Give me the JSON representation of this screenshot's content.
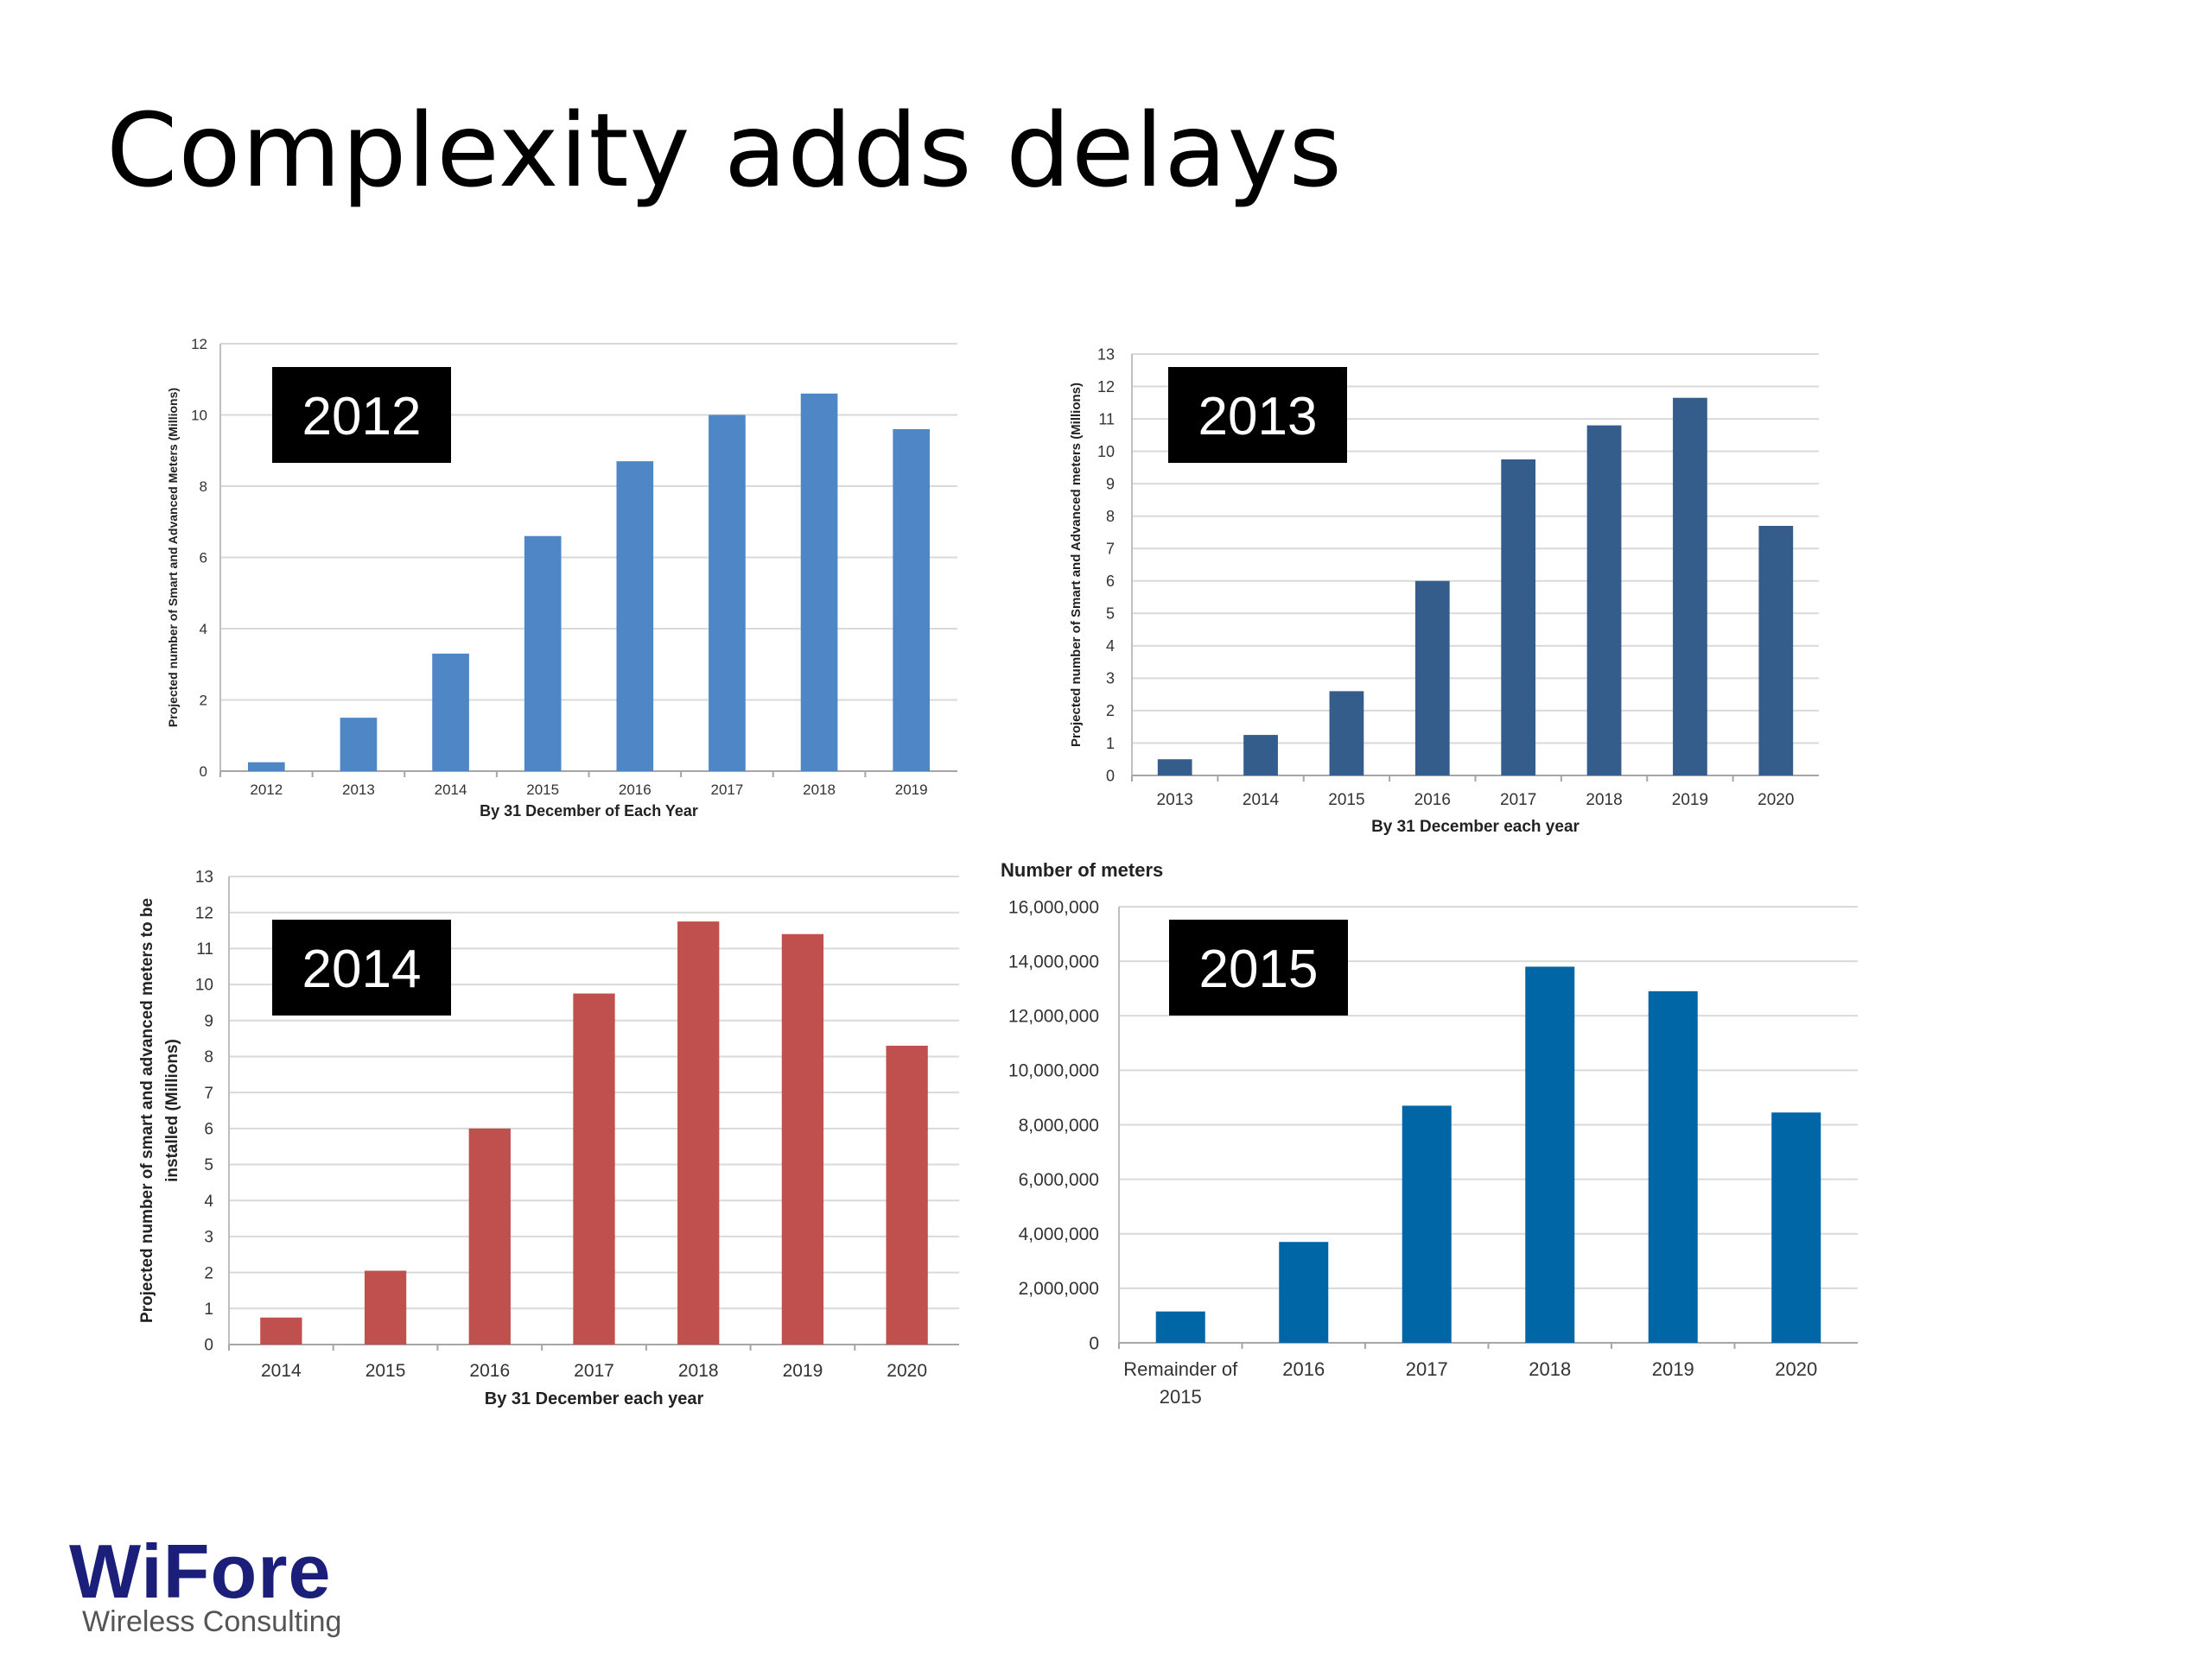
{
  "slide": {
    "title": "Complexity adds delays"
  },
  "logo": {
    "name": "WiFore",
    "tagline": "Wireless Consulting"
  },
  "chart_data": [
    {
      "type": "bar",
      "badge": "2012",
      "categories": [
        "2012",
        "2013",
        "2014",
        "2015",
        "2016",
        "2017",
        "2018",
        "2019"
      ],
      "values": [
        0.25,
        1.5,
        3.3,
        6.6,
        8.7,
        10.0,
        10.6,
        9.6
      ],
      "ylim": [
        0,
        12
      ],
      "yticks": [
        0,
        2,
        4,
        6,
        8,
        10,
        12
      ],
      "ylabel": "Projected number of Smart and Advanced Meters (Millions)",
      "xlabel": "By 31 December of Each Year",
      "color": "#4f86c6",
      "grid": true
    },
    {
      "type": "bar",
      "badge": "2013",
      "categories": [
        "2013",
        "2014",
        "2015",
        "2016",
        "2017",
        "2018",
        "2019",
        "2020"
      ],
      "values": [
        0.5,
        1.25,
        2.6,
        6.0,
        9.75,
        10.8,
        11.65,
        7.7
      ],
      "ylim": [
        0,
        13
      ],
      "yticks": [
        0,
        1,
        2,
        3,
        4,
        5,
        6,
        7,
        8,
        9,
        10,
        11,
        12,
        13
      ],
      "ylabel": "Projected number of Smart and Advanced meters (Millions)",
      "xlabel": "By 31 December each year",
      "color": "#355d8c",
      "grid": true
    },
    {
      "type": "bar",
      "badge": "2014",
      "categories": [
        "2014",
        "2015",
        "2016",
        "2017",
        "2018",
        "2019",
        "2020"
      ],
      "values": [
        0.75,
        2.05,
        6.0,
        9.75,
        11.75,
        11.4,
        8.3
      ],
      "ylim": [
        0,
        13
      ],
      "yticks": [
        0,
        1,
        2,
        3,
        4,
        5,
        6,
        7,
        8,
        9,
        10,
        11,
        12,
        13
      ],
      "ylabel": "Projected number of smart and advanced meters to be",
      "ylabel2": "installed (Millions)",
      "xlabel": "By 31 December each year",
      "color": "#c0504d",
      "grid": true
    },
    {
      "type": "bar",
      "badge": "2015",
      "categories": [
        "Remainder of 2015",
        "2016",
        "2017",
        "2018",
        "2019",
        "2020"
      ],
      "values": [
        1150000,
        3700000,
        8700000,
        13800000,
        12900000,
        8450000
      ],
      "ylim": [
        0,
        16000000
      ],
      "yticks": [
        "0",
        "2,000,000",
        "4,000,000",
        "6,000,000",
        "8,000,000",
        "10,000,000",
        "12,000,000",
        "14,000,000",
        "16,000,000"
      ],
      "ylabel": "Number of meters",
      "xlabel": "",
      "color": "#0066a5",
      "grid": true
    }
  ]
}
